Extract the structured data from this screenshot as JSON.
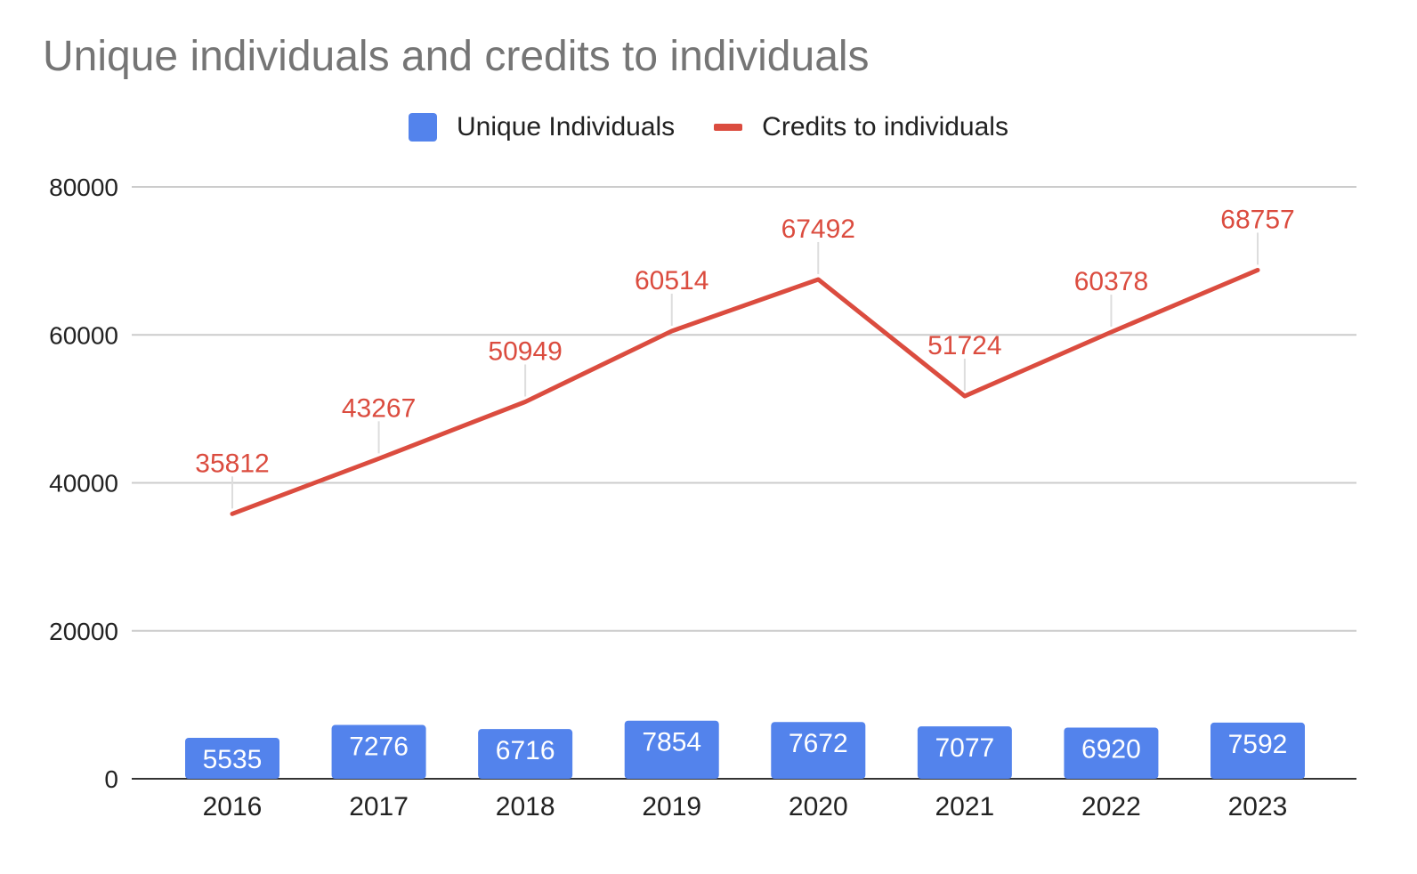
{
  "chart_data": {
    "type": "bar",
    "title": "Unique individuals and credits to individuals",
    "xlabel": "",
    "ylabel": "",
    "categories": [
      "2016",
      "2017",
      "2018",
      "2019",
      "2020",
      "2021",
      "2022",
      "2023"
    ],
    "series": [
      {
        "name": "Unique Individuals",
        "type": "bar",
        "color": "#5383ec",
        "values": [
          5535,
          7276,
          6716,
          7854,
          7672,
          7077,
          6920,
          7592
        ]
      },
      {
        "name": "Credits to individuals",
        "type": "line",
        "color": "#db4c3f",
        "values": [
          35812,
          43267,
          50949,
          60514,
          67492,
          51724,
          60378,
          68757
        ]
      }
    ],
    "ylim": [
      0,
      80000
    ],
    "yticks": [
      "0",
      "20000",
      "40000",
      "60000",
      "80000"
    ],
    "grid": true,
    "legend_position": "top"
  }
}
